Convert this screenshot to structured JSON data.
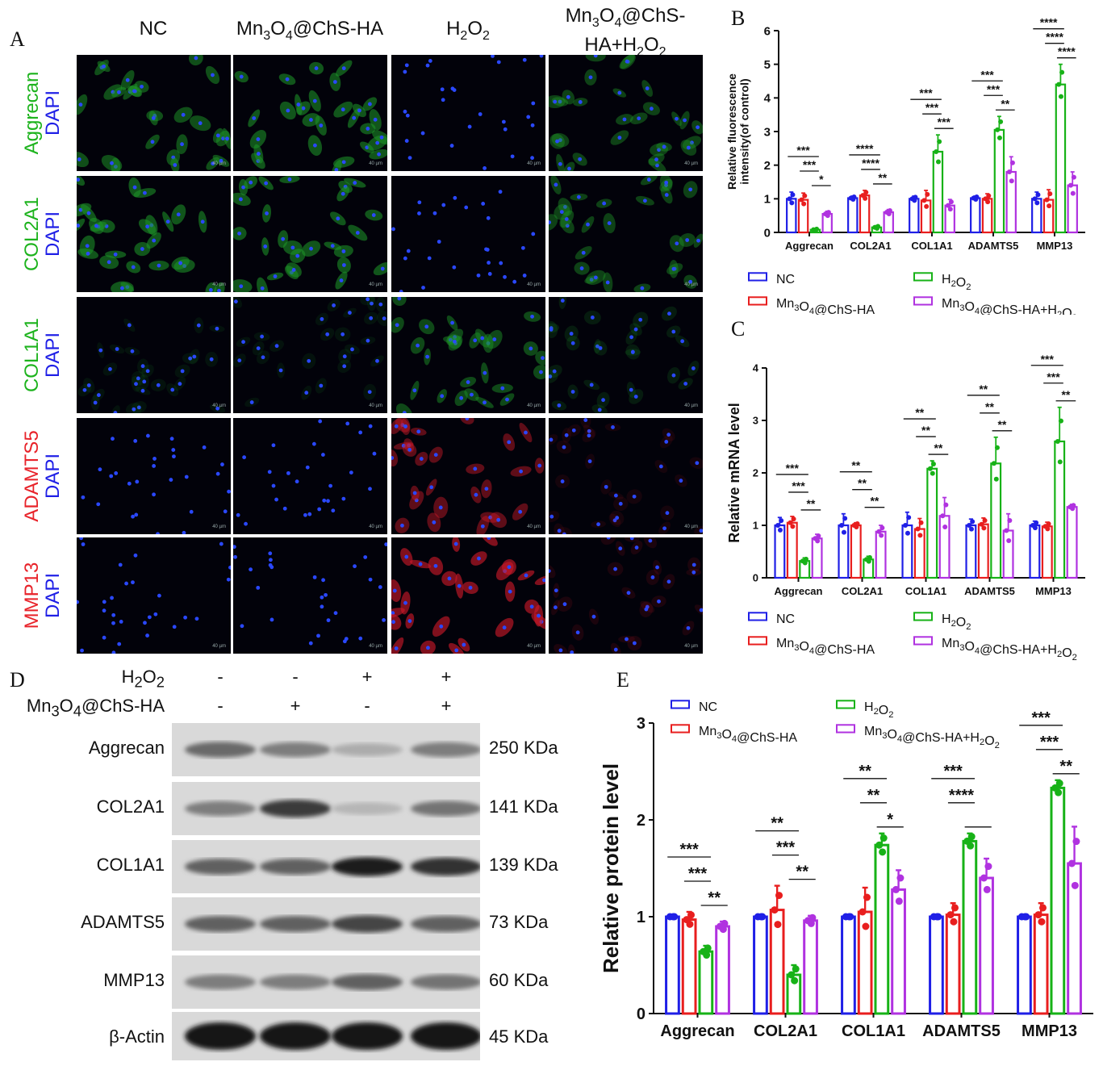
{
  "panels": {
    "A": "A",
    "B": "B",
    "C": "C",
    "D": "D",
    "E": "E"
  },
  "microscopy": {
    "columns": [
      "NC",
      "Mn3O4@ChS-HA",
      "H2O2",
      "Mn3O4@ChS-HA+H2O2"
    ],
    "rows": [
      {
        "marker": "Aggrecan",
        "stain": "DAPI",
        "marker_color": "#1db31d",
        "signal": [
          0.55,
          0.6,
          0.02,
          0.45
        ]
      },
      {
        "marker": "COL2A1",
        "stain": "DAPI",
        "marker_color": "#1db31d",
        "signal": [
          0.6,
          0.6,
          0.05,
          0.45
        ]
      },
      {
        "marker": "COL1A1",
        "stain": "DAPI",
        "marker_color": "#1db31d",
        "signal": [
          0.12,
          0.12,
          0.5,
          0.18
        ]
      },
      {
        "marker": "ADAMTS5",
        "stain": "DAPI",
        "marker_color": "#e8232a",
        "signal": [
          0.05,
          0.05,
          0.55,
          0.12
        ]
      },
      {
        "marker": "MMP13",
        "stain": "DAPI",
        "marker_color": "#e8232a",
        "signal": [
          0.06,
          0.06,
          0.75,
          0.15
        ]
      }
    ],
    "scale_label": "40 µm"
  },
  "western": {
    "treatments": [
      {
        "label": "H2O2",
        "signs": [
          "-",
          "-",
          "+",
          "+"
        ]
      },
      {
        "label": "Mn3O4@ChS-HA",
        "signs": [
          "-",
          "+",
          "-",
          "+"
        ]
      }
    ],
    "bands": [
      {
        "protein": "Aggrecan",
        "kda": "250 KDa",
        "intensity": [
          0.55,
          0.45,
          0.2,
          0.45
        ]
      },
      {
        "protein": "COL2A1",
        "kda": "141 KDa",
        "intensity": [
          0.45,
          0.8,
          0.15,
          0.5
        ]
      },
      {
        "protein": "COL1A1",
        "kda": "139 KDa",
        "intensity": [
          0.6,
          0.6,
          0.95,
          0.85
        ]
      },
      {
        "protein": "ADAMTS5",
        "kda": "73 KDa",
        "intensity": [
          0.6,
          0.6,
          0.75,
          0.6
        ]
      },
      {
        "protein": "MMP13",
        "kda": "60 KDa",
        "intensity": [
          0.45,
          0.45,
          0.6,
          0.5
        ]
      },
      {
        "protein": "β-Actin",
        "kda": "45 KDa",
        "intensity": [
          1,
          1,
          1,
          1
        ]
      }
    ]
  },
  "legend": [
    {
      "name": "NC",
      "color": "#1f1fe6"
    },
    {
      "name": "H2O2",
      "color": "#17b217"
    },
    {
      "name": "Mn3O4@ChS-HA",
      "color": "#e81e1e"
    },
    {
      "name": "Mn3O4@ChS-HA+H2O2",
      "color": "#b032e0"
    }
  ],
  "chart_data": [
    {
      "id": "B",
      "type": "bar",
      "ylabel": "Relative fluorescence intensity(of control)",
      "ylim": [
        0,
        6
      ],
      "yticks": [
        "0",
        "1",
        "2",
        "3",
        "4",
        "5",
        "6"
      ],
      "categories": [
        "Aggrecan",
        "COL2A1",
        "COL1A1",
        "ADAMTS5",
        "MMP13"
      ],
      "series": [
        {
          "name": "NC",
          "color": "#1f1fe6",
          "values": [
            1.0,
            1.02,
            1.0,
            1.02,
            1.0
          ],
          "errors": [
            0.2,
            0.06,
            0.08,
            0.06,
            0.2
          ]
        },
        {
          "name": "Mn3O4@ChS-HA",
          "color": "#e81e1e",
          "values": [
            0.97,
            1.1,
            0.95,
            1.0,
            0.97
          ],
          "errors": [
            0.2,
            0.15,
            0.3,
            0.15,
            0.3
          ]
        },
        {
          "name": "H2O2",
          "color": "#17b217",
          "values": [
            0.08,
            0.15,
            2.4,
            3.05,
            4.4
          ],
          "errors": [
            0.03,
            0.05,
            0.5,
            0.4,
            0.6
          ]
        },
        {
          "name": "Mn3O4@ChS-HA+H2O2",
          "color": "#b032e0",
          "values": [
            0.55,
            0.6,
            0.8,
            1.8,
            1.4
          ],
          "errors": [
            0.08,
            0.08,
            0.18,
            0.45,
            0.4
          ]
        }
      ],
      "significance": [
        {
          "cat": 0,
          "lines": [
            "***",
            "***",
            "*"
          ]
        },
        {
          "cat": 1,
          "lines": [
            "****",
            "****",
            "**"
          ]
        },
        {
          "cat": 2,
          "lines": [
            "***",
            "***",
            "***"
          ]
        },
        {
          "cat": 3,
          "lines": [
            "***",
            "***",
            "**"
          ]
        },
        {
          "cat": 4,
          "lines": [
            "****",
            "****",
            "****"
          ]
        }
      ]
    },
    {
      "id": "C",
      "type": "bar",
      "ylabel": "Relative mRNA level",
      "ylim": [
        0,
        4
      ],
      "yticks": [
        "0",
        "1",
        "2",
        "3",
        "4"
      ],
      "categories": [
        "Aggrecan",
        "COL2A1",
        "COL1A1",
        "ADAMTS5",
        "MMP13"
      ],
      "series": [
        {
          "name": "NC",
          "color": "#1f1fe6",
          "values": [
            1.0,
            1.0,
            1.0,
            1.0,
            1.0
          ],
          "errors": [
            0.15,
            0.22,
            0.25,
            0.12,
            0.08
          ]
        },
        {
          "name": "Mn3O4@ChS-HA",
          "color": "#e81e1e",
          "values": [
            1.05,
            1.0,
            0.93,
            1.02,
            0.98
          ],
          "errors": [
            0.12,
            0.05,
            0.2,
            0.12,
            0.08
          ]
        },
        {
          "name": "H2O2",
          "color": "#17b217",
          "values": [
            0.32,
            0.35,
            2.08,
            2.18,
            2.6
          ],
          "errors": [
            0.06,
            0.06,
            0.15,
            0.5,
            0.65
          ]
        },
        {
          "name": "Mn3O4@ChS-HA+H2O2",
          "color": "#b032e0",
          "values": [
            0.75,
            0.88,
            1.18,
            0.9,
            1.35
          ],
          "errors": [
            0.08,
            0.12,
            0.35,
            0.32,
            0.05
          ]
        }
      ],
      "significance": [
        {
          "cat": 0,
          "lines": [
            "***",
            "***",
            "**"
          ]
        },
        {
          "cat": 1,
          "lines": [
            "**",
            "**",
            "**"
          ]
        },
        {
          "cat": 2,
          "lines": [
            "**",
            "**",
            "**"
          ]
        },
        {
          "cat": 3,
          "lines": [
            "**",
            "**",
            "**"
          ]
        },
        {
          "cat": 4,
          "lines": [
            "***",
            "***",
            "**"
          ]
        }
      ]
    },
    {
      "id": "E",
      "type": "bar",
      "ylabel": "Relative protein level",
      "ylim": [
        0,
        3
      ],
      "yticks": [
        "0",
        "1",
        "2",
        "3"
      ],
      "categories": [
        "Aggrecan",
        "COL2A1",
        "COL1A1",
        "ADAMTS5",
        "MMP13"
      ],
      "series": [
        {
          "name": "NC",
          "color": "#1f1fe6",
          "values": [
            1.0,
            1.0,
            1.0,
            1.0,
            1.0
          ],
          "errors": [
            0.0,
            0.0,
            0.0,
            0.0,
            0.0
          ]
        },
        {
          "name": "Mn3O4@ChS-HA",
          "color": "#e81e1e",
          "values": [
            0.97,
            1.07,
            1.05,
            1.02,
            1.02
          ],
          "errors": [
            0.08,
            0.25,
            0.25,
            0.12,
            0.12
          ]
        },
        {
          "name": "H2O2",
          "color": "#17b217",
          "values": [
            0.64,
            0.4,
            1.74,
            1.78,
            2.33
          ],
          "errors": [
            0.06,
            0.1,
            0.12,
            0.08,
            0.08
          ]
        },
        {
          "name": "Mn3O4@ChS-HA+H2O2",
          "color": "#b032e0",
          "values": [
            0.9,
            0.96,
            1.28,
            1.4,
            1.55
          ],
          "errors": [
            0.05,
            0.05,
            0.2,
            0.2,
            0.38
          ]
        }
      ],
      "significance": [
        {
          "cat": 0,
          "lines": [
            "***",
            "***",
            "**"
          ]
        },
        {
          "cat": 1,
          "lines": [
            "**",
            "***",
            "**"
          ]
        },
        {
          "cat": 2,
          "lines": [
            "**",
            "**",
            "*"
          ]
        },
        {
          "cat": 3,
          "lines": [
            "***",
            "****",
            ""
          ]
        },
        {
          "cat": 4,
          "lines": [
            "***",
            "***",
            "**"
          ]
        }
      ]
    }
  ]
}
